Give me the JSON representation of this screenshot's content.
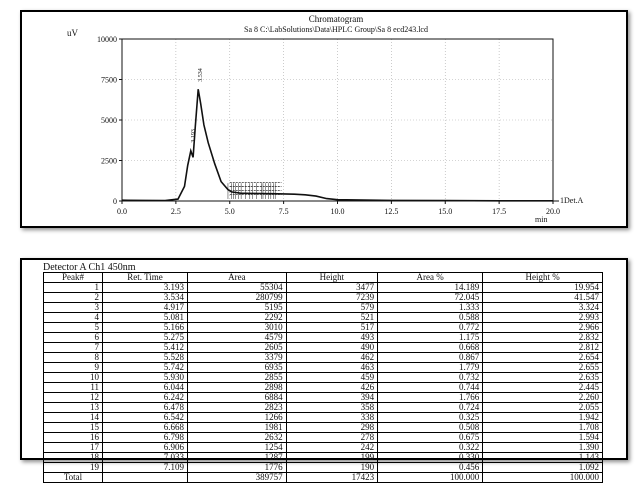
{
  "chart_data": [
    {
      "type": "line",
      "title": "Chromatogram",
      "subtitle_text": "Sa 8 C:\\LabSolutions\\Data\\HPLC Group\\Sa 8     ecd243.lcd",
      "ylabel": "uV",
      "xlabel": "min",
      "series_label": "1Det.A",
      "xlim": [
        0,
        20
      ],
      "ylim": [
        0,
        10000
      ],
      "x_ticks": [
        "0.0",
        "2.5",
        "5.0",
        "7.5",
        "10.0",
        "12.5",
        "15.0",
        "17.5",
        "20.0"
      ],
      "y_ticks": [
        "0",
        "2500",
        "5000",
        "7500",
        "10000"
      ],
      "grid": true,
      "peak_labels": [
        {
          "x": 3.193,
          "y": 3477,
          "text": "3.193"
        },
        {
          "x": 3.534,
          "y": 7239,
          "text": "3.534"
        }
      ],
      "series": [
        {
          "color": "#111111",
          "x": [
            0.0,
            1.0,
            2.0,
            2.6,
            2.9,
            3.05,
            3.193,
            3.3,
            3.4,
            3.534,
            3.65,
            3.8,
            4.0,
            4.3,
            4.6,
            4.917,
            5.081,
            5.5,
            6.0,
            6.5,
            7.0,
            7.5,
            8.0,
            8.5,
            9.0,
            9.5,
            10.0,
            12.5,
            15.0,
            17.5,
            20.0
          ],
          "y": [
            50,
            40,
            30,
            120,
            900,
            2200,
            3100,
            2700,
            4600,
            6900,
            6000,
            4700,
            3600,
            2300,
            1200,
            700,
            560,
            480,
            470,
            460,
            450,
            440,
            420,
            380,
            300,
            150,
            80,
            40,
            25,
            15,
            10
          ]
        }
      ]
    },
    {
      "type": "table",
      "caption": "Detector A Ch1 450nm",
      "columns": [
        "Peak#",
        "Ret. Time",
        "Area",
        "Height",
        "Area %",
        "Height %"
      ],
      "rows": [
        [
          "1",
          "3.193",
          "55304",
          "3477",
          "14.189",
          "19.954"
        ],
        [
          "2",
          "3.534",
          "280799",
          "7239",
          "72.045",
          "41.547"
        ],
        [
          "3",
          "4.917",
          "5195",
          "579",
          "1.333",
          "3.324"
        ],
        [
          "4",
          "5.081",
          "2292",
          "521",
          "0.588",
          "2.993"
        ],
        [
          "5",
          "5.166",
          "3010",
          "517",
          "0.772",
          "2.966"
        ],
        [
          "6",
          "5.275",
          "4579",
          "493",
          "1.175",
          "2.832"
        ],
        [
          "7",
          "5.412",
          "2605",
          "490",
          "0.668",
          "2.812"
        ],
        [
          "8",
          "5.528",
          "3379",
          "462",
          "0.867",
          "2.654"
        ],
        [
          "9",
          "5.742",
          "6935",
          "463",
          "1.779",
          "2.655"
        ],
        [
          "10",
          "5.930",
          "2855",
          "459",
          "0.732",
          "2.635"
        ],
        [
          "11",
          "6.044",
          "2898",
          "426",
          "0.744",
          "2.445"
        ],
        [
          "12",
          "6.242",
          "6884",
          "394",
          "1.766",
          "2.260"
        ],
        [
          "13",
          "6.478",
          "2823",
          "358",
          "0.724",
          "2.055"
        ],
        [
          "14",
          "6.542",
          "1266",
          "338",
          "0.325",
          "1.942"
        ],
        [
          "15",
          "6.668",
          "1981",
          "298",
          "0.508",
          "1.708"
        ],
        [
          "16",
          "6.798",
          "2632",
          "278",
          "0.675",
          "1.594"
        ],
        [
          "17",
          "6.906",
          "1254",
          "242",
          "0.322",
          "1.390"
        ],
        [
          "18",
          "7.033",
          "1287",
          "199",
          "0.330",
          "1.143"
        ],
        [
          "19",
          "7.109",
          "1776",
          "190",
          "0.456",
          "1.092"
        ]
      ],
      "total": [
        "Total",
        "",
        "389757",
        "17423",
        "100.000",
        "100.000"
      ]
    }
  ]
}
